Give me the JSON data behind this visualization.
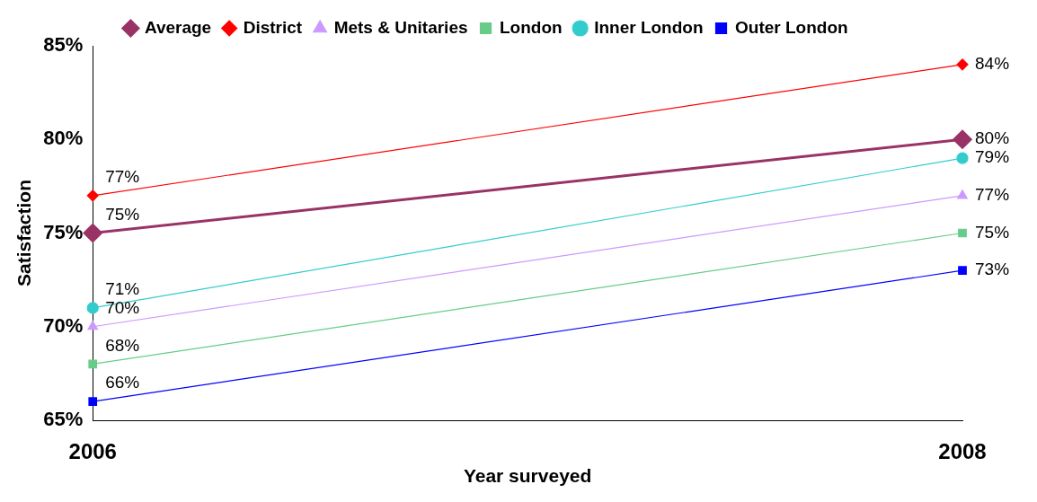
{
  "chart_data": {
    "type": "line",
    "xlabel": "Year surveyed",
    "ylabel": "Satisfaction",
    "categories": [
      "2006",
      "2008"
    ],
    "ylim": [
      65,
      85
    ],
    "yticks": [
      {
        "value": 65,
        "label": "65%"
      },
      {
        "value": 70,
        "label": "70%"
      },
      {
        "value": 75,
        "label": "75%"
      },
      {
        "value": 80,
        "label": "80%"
      },
      {
        "value": 85,
        "label": "85%"
      }
    ],
    "grid": false,
    "legend": "top",
    "series": [
      {
        "name": "Average",
        "color": "#993366",
        "marker": "diamond",
        "values": [
          75,
          80
        ],
        "value_labels": [
          "75%",
          "80%"
        ]
      },
      {
        "name": "District",
        "color": "#ff0000",
        "marker": "diamond",
        "values": [
          77,
          84
        ],
        "value_labels": [
          "77%",
          "84%"
        ]
      },
      {
        "name": "Mets & Unitaries",
        "color": "#cc99ff",
        "marker": "triangle",
        "values": [
          70,
          77
        ],
        "value_labels": [
          "70%",
          "77%"
        ]
      },
      {
        "name": "London",
        "color": "#66cc88",
        "marker": "square",
        "values": [
          68,
          75
        ],
        "value_labels": [
          "68%",
          "75%"
        ]
      },
      {
        "name": "Inner London",
        "color": "#33cccc",
        "marker": "circle",
        "values": [
          71,
          79
        ],
        "value_labels": [
          "71%",
          "79%"
        ]
      },
      {
        "name": "Outer London",
        "color": "#0000ff",
        "marker": "square",
        "values": [
          66,
          73
        ],
        "value_labels": [
          "66%",
          "73%"
        ]
      }
    ]
  }
}
